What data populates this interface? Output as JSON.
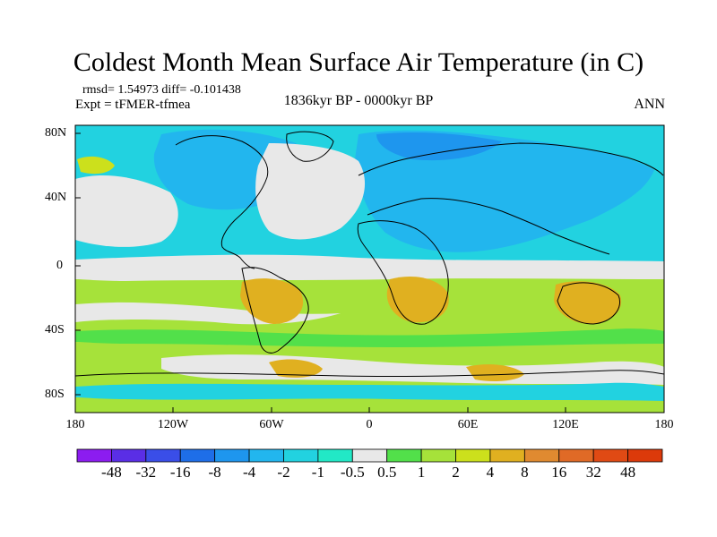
{
  "title": "Coldest Month Mean Surface Air Temperature (in C)",
  "stats_line": "rmsd= 1.54973 diff= -0.101438",
  "experiment_line": "Expt = tFMER-tfmea",
  "period_line": "1836kyr BP - 0000kyr BP",
  "season": "ANN",
  "latitude_labels": [
    "80N",
    "40N",
    "0",
    "40S",
    "80S"
  ],
  "longitude_labels": [
    "180",
    "120W",
    "60W",
    "0",
    "60E",
    "120E",
    "180"
  ],
  "colorbar": {
    "labels": [
      "-48",
      "-32",
      "-16",
      "-8",
      "-4",
      "-2",
      "-1",
      "-0.5",
      "0.5",
      "1",
      "2",
      "4",
      "8",
      "16",
      "32",
      "48"
    ],
    "colors": [
      "#8c1cf0",
      "#5a2ee6",
      "#3a4ee8",
      "#1e6ee8",
      "#1e96ee",
      "#22b6ee",
      "#22d2e0",
      "#22e8c6",
      "#e8e8e8",
      "#52e04a",
      "#a6e23a",
      "#cce01c",
      "#e0b020",
      "#e08a30",
      "#e06a26",
      "#e04a14",
      "#dc3a0a"
    ]
  },
  "map_colors": {
    "ocean_base": "#a6e23a",
    "warm_orange": "#e0b020",
    "light_orange": "#cce01c",
    "neutral": "#e8e8e8",
    "cool_light": "#22d2e0",
    "cool_mid": "#22b6ee",
    "cool_dark": "#1e96ee",
    "green": "#52e04a",
    "coast": "#000000"
  }
}
